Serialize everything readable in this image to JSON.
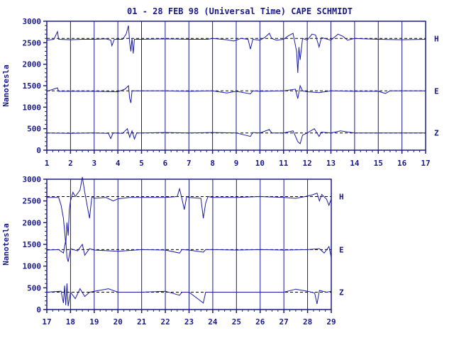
{
  "title": "01 - 28 FEB 98 (Universal Time) CAPE SCHMIDT",
  "colors": {
    "axis": "#1a1a8c",
    "trace": "#1a1aa8",
    "baseline": "#000000",
    "background": "#ffffff"
  },
  "chart_data": [
    {
      "type": "line",
      "ylabel": "Nanotesla",
      "xlim": [
        1,
        17
      ],
      "ylim": [
        0,
        3000
      ],
      "x_ticks": [
        "1",
        "2",
        "3",
        "4",
        "5",
        "6",
        "7",
        "8",
        "9",
        "10",
        "11",
        "12",
        "13",
        "14",
        "15",
        "16",
        "17"
      ],
      "y_ticks": [
        "0",
        "500",
        "1000",
        "1500",
        "2000",
        "2500",
        "3000"
      ],
      "grid": "vertical day lines",
      "series": [
        {
          "name": "H",
          "baseline": 2600,
          "points": [
            [
              1,
              2560
            ],
            [
              1.3,
              2580
            ],
            [
              1.45,
              2760
            ],
            [
              1.5,
              2580
            ],
            [
              2,
              2570
            ],
            [
              2.5,
              2580
            ],
            [
              3,
              2580
            ],
            [
              3.5,
              2590
            ],
            [
              3.7,
              2560
            ],
            [
              3.75,
              2430
            ],
            [
              3.85,
              2580
            ],
            [
              4.2,
              2580
            ],
            [
              4.35,
              2700
            ],
            [
              4.45,
              2900
            ],
            [
              4.5,
              2500
            ],
            [
              4.55,
              2300
            ],
            [
              4.6,
              2600
            ],
            [
              4.65,
              2250
            ],
            [
              4.7,
              2580
            ],
            [
              5,
              2580
            ],
            [
              6,
              2590
            ],
            [
              7,
              2580
            ],
            [
              7.8,
              2580
            ],
            [
              8,
              2600
            ],
            [
              8.6,
              2570
            ],
            [
              8.9,
              2540
            ],
            [
              9.2,
              2600
            ],
            [
              9.5,
              2580
            ],
            [
              9.6,
              2350
            ],
            [
              9.7,
              2580
            ],
            [
              10,
              2560
            ],
            [
              10.2,
              2620
            ],
            [
              10.4,
              2720
            ],
            [
              10.5,
              2600
            ],
            [
              10.7,
              2560
            ],
            [
              11,
              2580
            ],
            [
              11.2,
              2660
            ],
            [
              11.4,
              2720
            ],
            [
              11.55,
              2300
            ],
            [
              11.6,
              1800
            ],
            [
              11.65,
              2400
            ],
            [
              11.7,
              2100
            ],
            [
              11.8,
              2600
            ],
            [
              12,
              2560
            ],
            [
              12.2,
              2700
            ],
            [
              12.35,
              2680
            ],
            [
              12.5,
              2400
            ],
            [
              12.6,
              2620
            ],
            [
              13,
              2560
            ],
            [
              13.3,
              2700
            ],
            [
              13.5,
              2650
            ],
            [
              13.7,
              2560
            ],
            [
              14,
              2600
            ],
            [
              15,
              2580
            ],
            [
              16,
              2570
            ],
            [
              17,
              2580
            ]
          ]
        },
        {
          "name": "E",
          "baseline": 1380,
          "points": [
            [
              1,
              1370
            ],
            [
              1.45,
              1450
            ],
            [
              1.5,
              1370
            ],
            [
              2,
              1370
            ],
            [
              3,
              1370
            ],
            [
              4,
              1360
            ],
            [
              4.3,
              1420
            ],
            [
              4.45,
              1500
            ],
            [
              4.5,
              1200
            ],
            [
              4.55,
              1100
            ],
            [
              4.6,
              1380
            ],
            [
              5,
              1380
            ],
            [
              6,
              1380
            ],
            [
              7,
              1370
            ],
            [
              8,
              1380
            ],
            [
              8.6,
              1330
            ],
            [
              9,
              1370
            ],
            [
              9.6,
              1310
            ],
            [
              9.7,
              1380
            ],
            [
              10,
              1370
            ],
            [
              11,
              1380
            ],
            [
              11.5,
              1420
            ],
            [
              11.6,
              1200
            ],
            [
              11.7,
              1500
            ],
            [
              11.8,
              1380
            ],
            [
              12,
              1360
            ],
            [
              12.5,
              1340
            ],
            [
              13,
              1380
            ],
            [
              14,
              1370
            ],
            [
              15,
              1370
            ],
            [
              15.3,
              1320
            ],
            [
              15.5,
              1380
            ],
            [
              16,
              1380
            ],
            [
              17,
              1380
            ]
          ]
        },
        {
          "name": "Z",
          "baseline": 400,
          "points": [
            [
              1,
              400
            ],
            [
              2,
              390
            ],
            [
              3,
              400
            ],
            [
              3.6,
              390
            ],
            [
              3.7,
              270
            ],
            [
              3.8,
              400
            ],
            [
              4.2,
              390
            ],
            [
              4.4,
              500
            ],
            [
              4.5,
              300
            ],
            [
              4.6,
              450
            ],
            [
              4.7,
              260
            ],
            [
              4.8,
              400
            ],
            [
              5,
              400
            ],
            [
              6,
              410
            ],
            [
              7,
              400
            ],
            [
              8,
              410
            ],
            [
              9,
              400
            ],
            [
              9.6,
              320
            ],
            [
              9.7,
              410
            ],
            [
              10,
              400
            ],
            [
              10.4,
              480
            ],
            [
              10.5,
              400
            ],
            [
              11,
              400
            ],
            [
              11.4,
              450
            ],
            [
              11.6,
              200
            ],
            [
              11.7,
              150
            ],
            [
              11.8,
              350
            ],
            [
              12,
              400
            ],
            [
              12.3,
              500
            ],
            [
              12.5,
              320
            ],
            [
              12.6,
              420
            ],
            [
              13,
              400
            ],
            [
              13.4,
              450
            ],
            [
              14,
              400
            ],
            [
              15,
              400
            ],
            [
              16,
              400
            ],
            [
              17,
              400
            ]
          ]
        }
      ]
    },
    {
      "type": "line",
      "ylabel": "Nanotesla",
      "xlim": [
        17,
        29
      ],
      "ylim": [
        0,
        3000
      ],
      "x_ticks": [
        "17",
        "18",
        "19",
        "20",
        "21",
        "22",
        "23",
        "24",
        "25",
        "26",
        "27",
        "28",
        "29"
      ],
      "y_ticks": [
        "0",
        "500",
        "1000",
        "1500",
        "2000",
        "2500",
        "3000"
      ],
      "grid": "vertical day lines",
      "series": [
        {
          "name": "H",
          "baseline": 2600,
          "points": [
            [
              17,
              2580
            ],
            [
              17.5,
              2580
            ],
            [
              17.6,
              2400
            ],
            [
              17.7,
              2100
            ],
            [
              17.75,
              1800
            ],
            [
              17.8,
              1500
            ],
            [
              17.85,
              2000
            ],
            [
              17.9,
              1700
            ],
            [
              17.95,
              2300
            ],
            [
              18,
              2500
            ],
            [
              18.1,
              2700
            ],
            [
              18.2,
              2600
            ],
            [
              18.4,
              2750
            ],
            [
              18.5,
              3050
            ],
            [
              18.6,
              2700
            ],
            [
              18.7,
              2400
            ],
            [
              18.8,
              2100
            ],
            [
              18.9,
              2600
            ],
            [
              19,
              2560
            ],
            [
              19.5,
              2580
            ],
            [
              19.8,
              2500
            ],
            [
              20,
              2550
            ],
            [
              20.5,
              2580
            ],
            [
              21,
              2580
            ],
            [
              22,
              2580
            ],
            [
              22.5,
              2600
            ],
            [
              22.6,
              2780
            ],
            [
              22.7,
              2550
            ],
            [
              22.8,
              2300
            ],
            [
              22.9,
              2600
            ],
            [
              23,
              2580
            ],
            [
              23.5,
              2560
            ],
            [
              23.6,
              2100
            ],
            [
              23.7,
              2450
            ],
            [
              23.8,
              2600
            ],
            [
              24,
              2580
            ],
            [
              25,
              2580
            ],
            [
              26,
              2600
            ],
            [
              27,
              2580
            ],
            [
              27.5,
              2560
            ],
            [
              27.9,
              2600
            ],
            [
              28.2,
              2640
            ],
            [
              28.4,
              2680
            ],
            [
              28.5,
              2500
            ],
            [
              28.6,
              2650
            ],
            [
              28.8,
              2540
            ],
            [
              28.9,
              2400
            ],
            [
              29,
              2550
            ]
          ]
        },
        {
          "name": "E",
          "baseline": 1380,
          "points": [
            [
              17,
              1370
            ],
            [
              17.5,
              1380
            ],
            [
              17.7,
              1300
            ],
            [
              17.8,
              1600
            ],
            [
              17.85,
              1200
            ],
            [
              17.9,
              1100
            ],
            [
              18,
              1400
            ],
            [
              18.3,
              1350
            ],
            [
              18.5,
              1500
            ],
            [
              18.6,
              1250
            ],
            [
              18.8,
              1400
            ],
            [
              19,
              1370
            ],
            [
              20,
              1340
            ],
            [
              21,
              1380
            ],
            [
              22,
              1370
            ],
            [
              22.6,
              1300
            ],
            [
              22.7,
              1380
            ],
            [
              23,
              1370
            ],
            [
              23.6,
              1320
            ],
            [
              23.7,
              1380
            ],
            [
              24,
              1380
            ],
            [
              25,
              1370
            ],
            [
              26,
              1380
            ],
            [
              27,
              1370
            ],
            [
              28,
              1380
            ],
            [
              28.5,
              1400
            ],
            [
              28.7,
              1300
            ],
            [
              28.9,
              1450
            ],
            [
              29,
              1200
            ]
          ]
        },
        {
          "name": "Z",
          "baseline": 400,
          "points": [
            [
              17,
              400
            ],
            [
              17.6,
              420
            ],
            [
              17.7,
              150
            ],
            [
              17.75,
              550
            ],
            [
              17.8,
              100
            ],
            [
              17.85,
              600
            ],
            [
              17.9,
              80
            ],
            [
              18,
              400
            ],
            [
              18.2,
              250
            ],
            [
              18.4,
              480
            ],
            [
              18.6,
              300
            ],
            [
              18.8,
              400
            ],
            [
              19,
              420
            ],
            [
              19.6,
              480
            ],
            [
              20,
              400
            ],
            [
              21,
              400
            ],
            [
              22,
              420
            ],
            [
              22.6,
              330
            ],
            [
              22.7,
              400
            ],
            [
              23,
              400
            ],
            [
              23.6,
              150
            ],
            [
              23.7,
              400
            ],
            [
              24,
              400
            ],
            [
              25,
              400
            ],
            [
              26,
              400
            ],
            [
              27,
              400
            ],
            [
              27.5,
              470
            ],
            [
              28,
              420
            ],
            [
              28.3,
              380
            ],
            [
              28.4,
              130
            ],
            [
              28.5,
              440
            ],
            [
              28.8,
              400
            ],
            [
              29,
              420
            ]
          ]
        }
      ]
    }
  ]
}
